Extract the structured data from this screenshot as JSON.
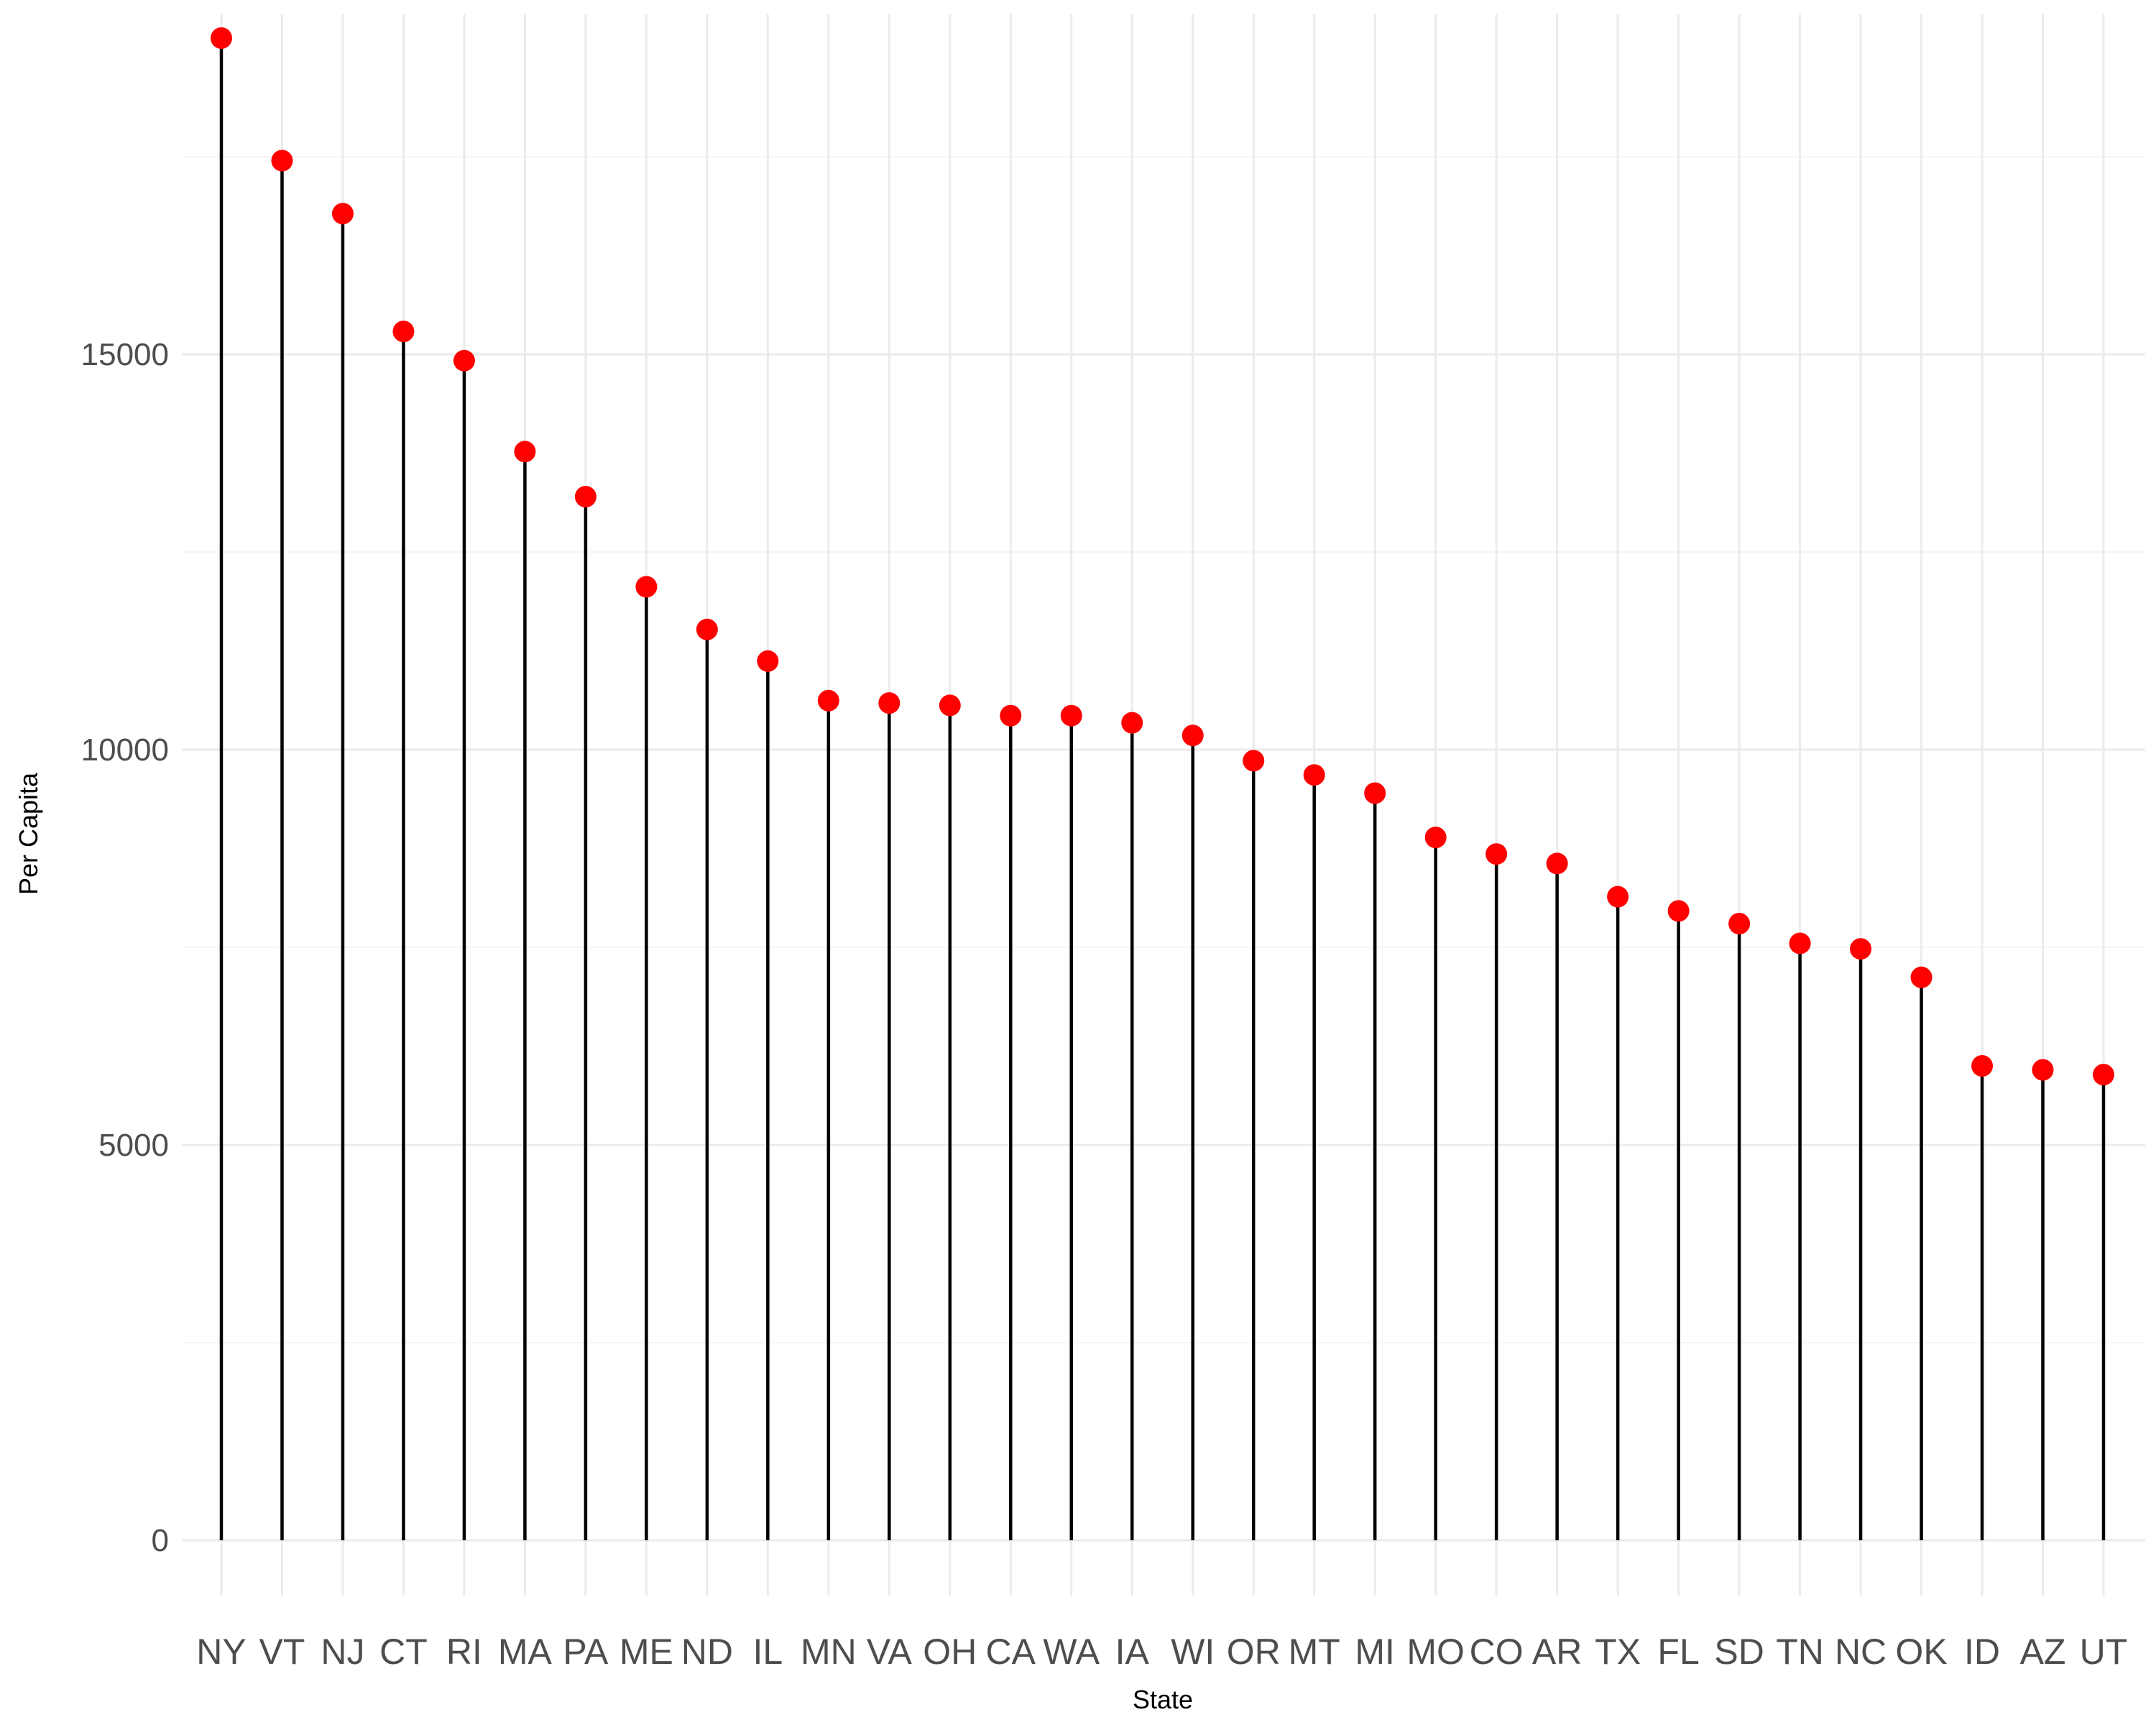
{
  "chart_data": {
    "type": "lollipop",
    "xlabel": "State",
    "ylabel": "Per Capita",
    "ylim": [
      -700,
      19300
    ],
    "y_ticks": [
      0,
      5000,
      10000,
      15000
    ],
    "y_minor_ticks": [
      2500,
      7500,
      12500,
      17500
    ],
    "grid": true,
    "colors": {
      "point": "#ff0000",
      "stem": "#000000",
      "grid": "#ebebeb"
    },
    "categories": [
      "NY",
      "VT",
      "NJ",
      "CT",
      "RI",
      "MA",
      "PA",
      "ME",
      "ND",
      "IL",
      "MN",
      "VA",
      "OH",
      "CA",
      "WA",
      "IA",
      "WI",
      "OR",
      "MT",
      "MI",
      "MO",
      "CO",
      "AR",
      "TX",
      "FL",
      "SD",
      "TN",
      "NC",
      "OK",
      "ID",
      "AZ",
      "UT"
    ],
    "values": [
      19000,
      17450,
      16780,
      15290,
      14920,
      13770,
      13200,
      12060,
      11520,
      11120,
      10620,
      10590,
      10560,
      10430,
      10430,
      10340,
      10180,
      9860,
      9680,
      9450,
      8890,
      8680,
      8560,
      8140,
      7960,
      7800,
      7550,
      7480,
      7120,
      6000,
      5950,
      5890
    ]
  }
}
